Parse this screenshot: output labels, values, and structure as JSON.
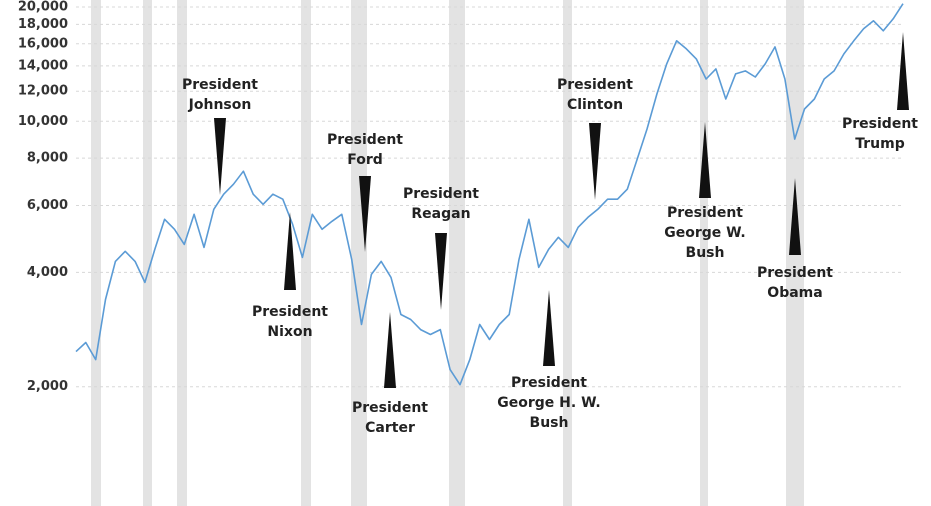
{
  "chart_data": {
    "type": "line",
    "log_scale": true,
    "grid": true,
    "ylim": [
      1000,
      20000
    ],
    "yticks": [
      {
        "value": 2000,
        "label": "2,000"
      },
      {
        "value": 4000,
        "label": "4,000"
      },
      {
        "value": 6000,
        "label": "6,000"
      },
      {
        "value": 8000,
        "label": "8,000"
      },
      {
        "value": 10000,
        "label": "10,000"
      },
      {
        "value": 12000,
        "label": "12,000"
      },
      {
        "value": 14000,
        "label": "14,000"
      },
      {
        "value": 16000,
        "label": "16,000"
      },
      {
        "value": 18000,
        "label": "18,000"
      },
      {
        "value": 20000,
        "label": "20,000"
      }
    ],
    "color": "#5b9bd5",
    "values": [
      2475,
      2614,
      2357,
      3394,
      4276,
      4545,
      4276,
      3764,
      4600,
      5520,
      5194,
      4741,
      5690,
      4656,
      5866,
      6426,
      6828,
      7390,
      6426,
      6046,
      6426,
      6234,
      5354,
      4382,
      5690,
      5194,
      5454,
      5690,
      4328,
      2916,
      3952,
      4276,
      3880,
      3098,
      3006,
      2828,
      2744,
      2828,
      2218,
      2024,
      2357,
      2916,
      2662,
      2916,
      3098,
      4328,
      5520,
      4122,
      4600,
      4948,
      4656,
      5258,
      5588,
      5866,
      6234,
      6234,
      6624,
      7950,
      9540,
      11802,
      14164,
      16290,
      15514,
      14600,
      12928,
      13738,
      11450,
      13330,
      13572,
      13084,
      14164,
      15706,
      12928,
      8978,
      10772,
      11450,
      12928,
      13572,
      15050,
      16290,
      17518,
      18394,
      17308,
      18618,
      20400
    ],
    "annotations": [
      {
        "text": [
          "President",
          "Johnson"
        ]
      },
      {
        "text": [
          "President",
          "Nixon"
        ]
      },
      {
        "text": [
          "President",
          "Ford"
        ]
      },
      {
        "text": [
          "President",
          "Carter"
        ]
      },
      {
        "text": [
          "President",
          "Reagan"
        ]
      },
      {
        "text": [
          "President",
          "George H. W.",
          "Bush"
        ]
      },
      {
        "text": [
          "President",
          "Clinton"
        ]
      },
      {
        "text": [
          "President",
          "George W.",
          "Bush"
        ]
      },
      {
        "text": [
          "President",
          "Obama"
        ]
      },
      {
        "text": [
          "President",
          "Trump"
        ]
      }
    ]
  }
}
